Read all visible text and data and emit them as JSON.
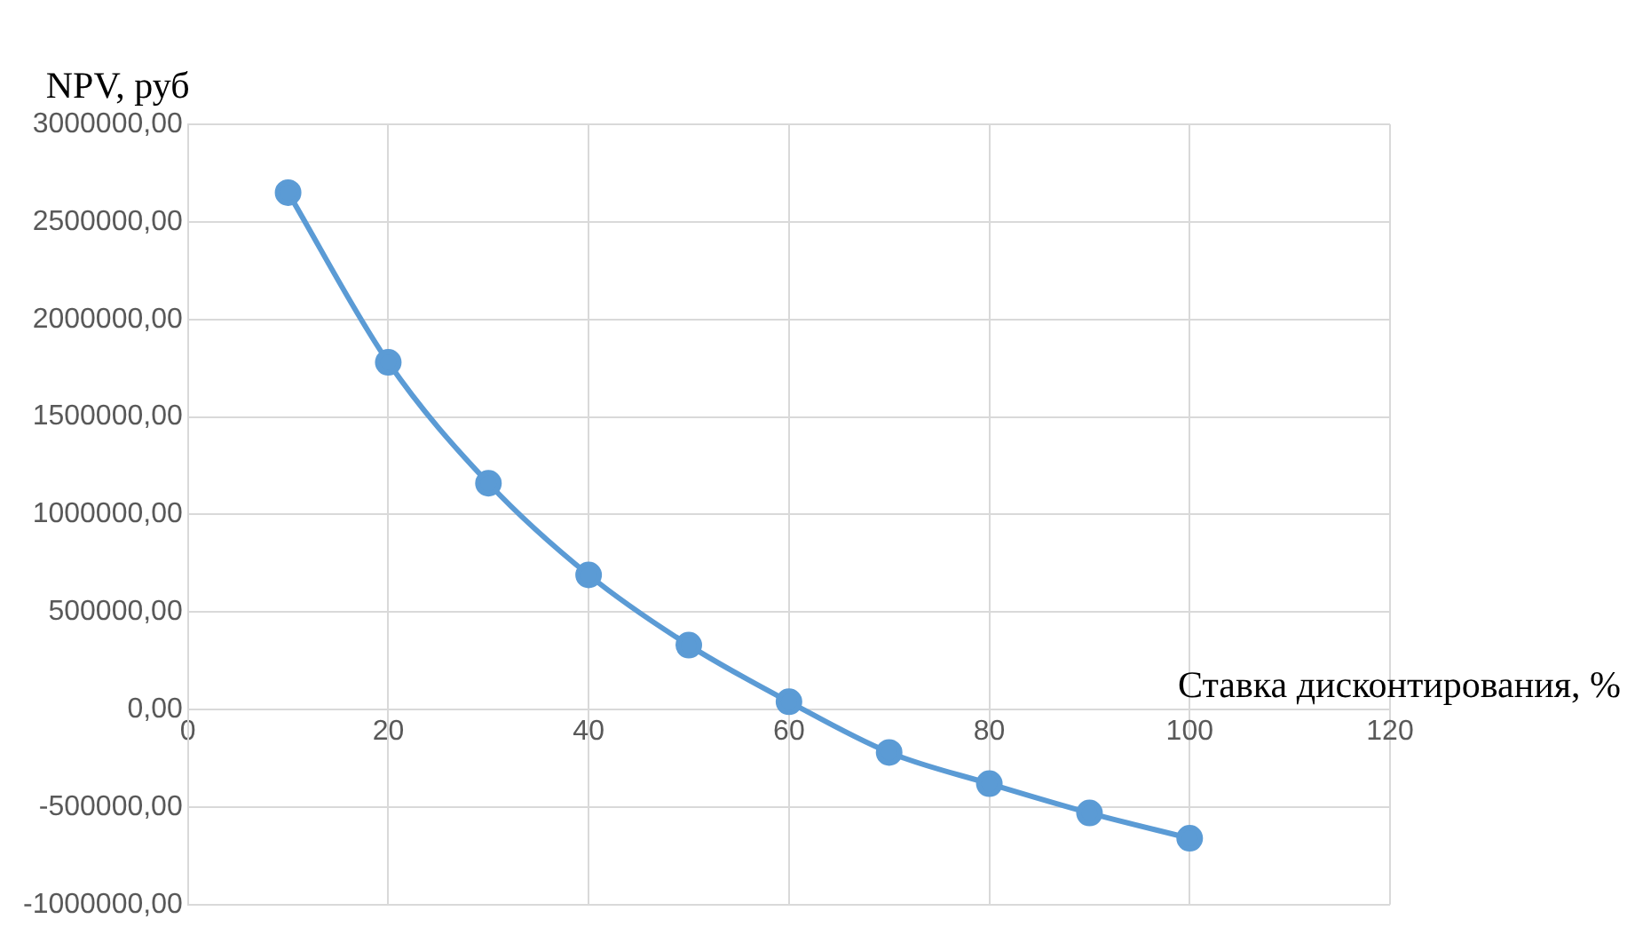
{
  "chart_data": {
    "type": "line",
    "xlabel": "Ставка дисконтирования, %",
    "ylabel": "NPV, руб",
    "x": [
      10,
      20,
      30,
      40,
      50,
      60,
      70,
      80,
      90,
      100
    ],
    "series": [
      {
        "color": "#5b9bd5",
        "values": [
          2650000,
          1780000,
          1160000,
          690000,
          330000,
          40000,
          -220000,
          -380000,
          -530000,
          -660000
        ]
      }
    ],
    "xlim": [
      0,
      120
    ],
    "xticks": [
      0,
      20,
      40,
      60,
      80,
      100,
      120
    ],
    "ylim": [
      -1000000,
      3000000
    ],
    "yticks": [
      {
        "value": -1000000,
        "label": "-1000000,00"
      },
      {
        "value": -500000,
        "label": "-500000,00"
      },
      {
        "value": 0,
        "label": "0,00"
      },
      {
        "value": 500000,
        "label": "500000,00"
      },
      {
        "value": 1000000,
        "label": "1000000,00"
      },
      {
        "value": 1500000,
        "label": "1500000,00"
      },
      {
        "value": 2000000,
        "label": "2000000,00"
      },
      {
        "value": 2500000,
        "label": "2500000,00"
      },
      {
        "value": 3000000,
        "label": "3000000,00"
      }
    ],
    "grid": true,
    "marker": "circle",
    "line_style": "solid"
  }
}
